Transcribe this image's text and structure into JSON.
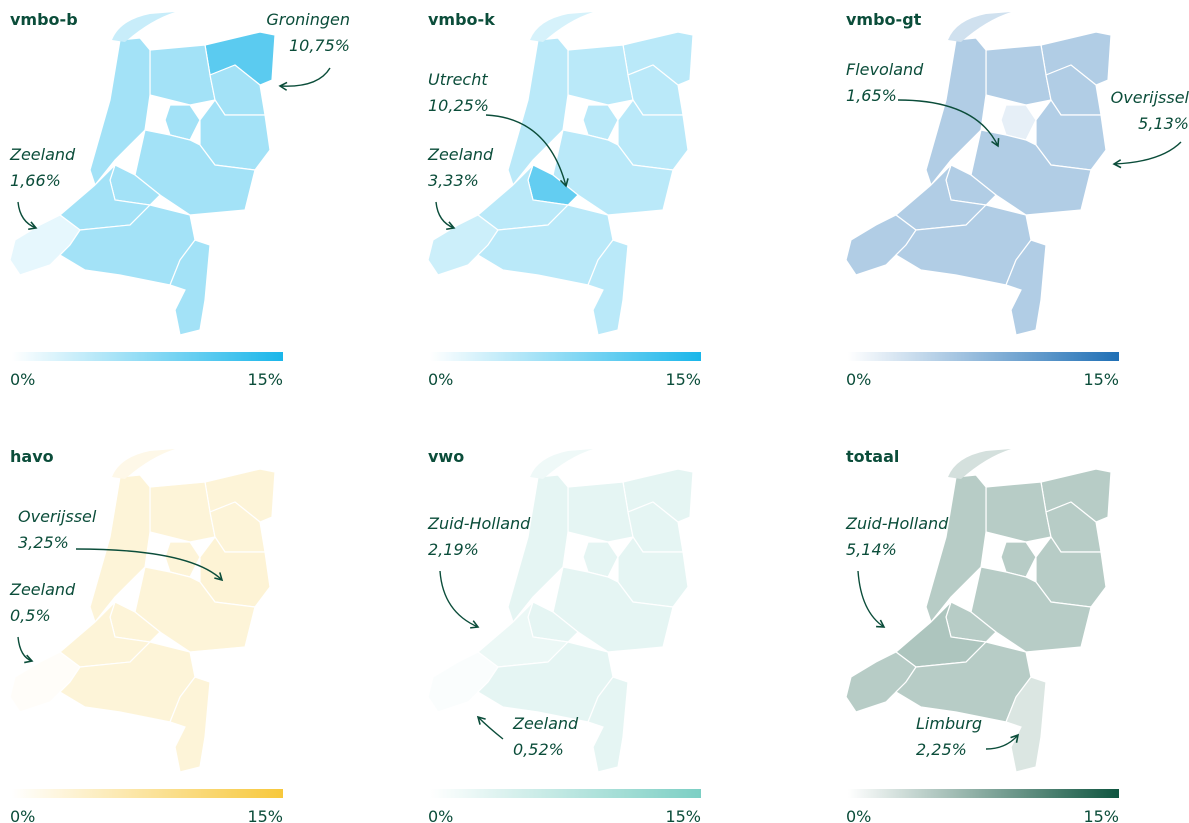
{
  "panels": [
    {
      "title": "vmbo-b",
      "scale": {
        "min": {
          "value": 0,
          "label": "0%"
        },
        "max": {
          "value": 15,
          "label": "15%"
        },
        "colors": [
          "#ffffff",
          "#1ab6ea"
        ]
      },
      "annotations": [
        {
          "region": "Groningen",
          "value": 10.75,
          "label": "10,75%"
        },
        {
          "region": "Zeeland",
          "value": 1.66,
          "label": "1,66%"
        }
      ]
    },
    {
      "title": "vmbo-k",
      "scale": {
        "min": {
          "value": 0,
          "label": "0%"
        },
        "max": {
          "value": 15,
          "label": "15%"
        },
        "colors": [
          "#ffffff",
          "#1ab6ea"
        ]
      },
      "annotations": [
        {
          "region": "Utrecht",
          "value": 10.25,
          "label": "10,25%"
        },
        {
          "region": "Zeeland",
          "value": 3.33,
          "label": "3,33%"
        }
      ]
    },
    {
      "title": "vmbo-gt",
      "scale": {
        "min": {
          "value": 0,
          "label": "0%"
        },
        "max": {
          "value": 15,
          "label": "15%"
        },
        "colors": [
          "#ffffff",
          "#1f6fb5"
        ]
      },
      "annotations": [
        {
          "region": "Flevoland",
          "value": 1.65,
          "label": "1,65%"
        },
        {
          "region": "Overijssel",
          "value": 5.13,
          "label": "5,13%"
        }
      ]
    },
    {
      "title": "havo",
      "scale": {
        "min": {
          "value": 0,
          "label": "0%"
        },
        "max": {
          "value": 15,
          "label": "15%"
        },
        "colors": [
          "#ffffff",
          "#f7c83c"
        ]
      },
      "annotations": [
        {
          "region": "Overijssel",
          "value": 3.25,
          "label": "3,25%"
        },
        {
          "region": "Zeeland",
          "value": 0.5,
          "label": "0,5%"
        }
      ]
    },
    {
      "title": "vwo",
      "scale": {
        "min": {
          "value": 0,
          "label": "0%"
        },
        "max": {
          "value": 15,
          "label": "15%"
        },
        "colors": [
          "#ffffff",
          "#7ccfc4"
        ]
      },
      "annotations": [
        {
          "region": "Zuid-Holland",
          "value": 2.19,
          "label": "2,19%"
        },
        {
          "region": "Zeeland",
          "value": 0.52,
          "label": "0,52%"
        }
      ]
    },
    {
      "title": "totaal",
      "scale": {
        "min": {
          "value": 0,
          "label": "0%"
        },
        "max": {
          "value": 15,
          "label": "15%"
        },
        "colors": [
          "#ffffff",
          "#0f5540"
        ]
      },
      "annotations": [
        {
          "region": "Zuid-Holland",
          "value": 5.14,
          "label": "5,14%"
        },
        {
          "region": "Limburg",
          "value": 2.25,
          "label": "2,25%"
        }
      ]
    }
  ]
}
